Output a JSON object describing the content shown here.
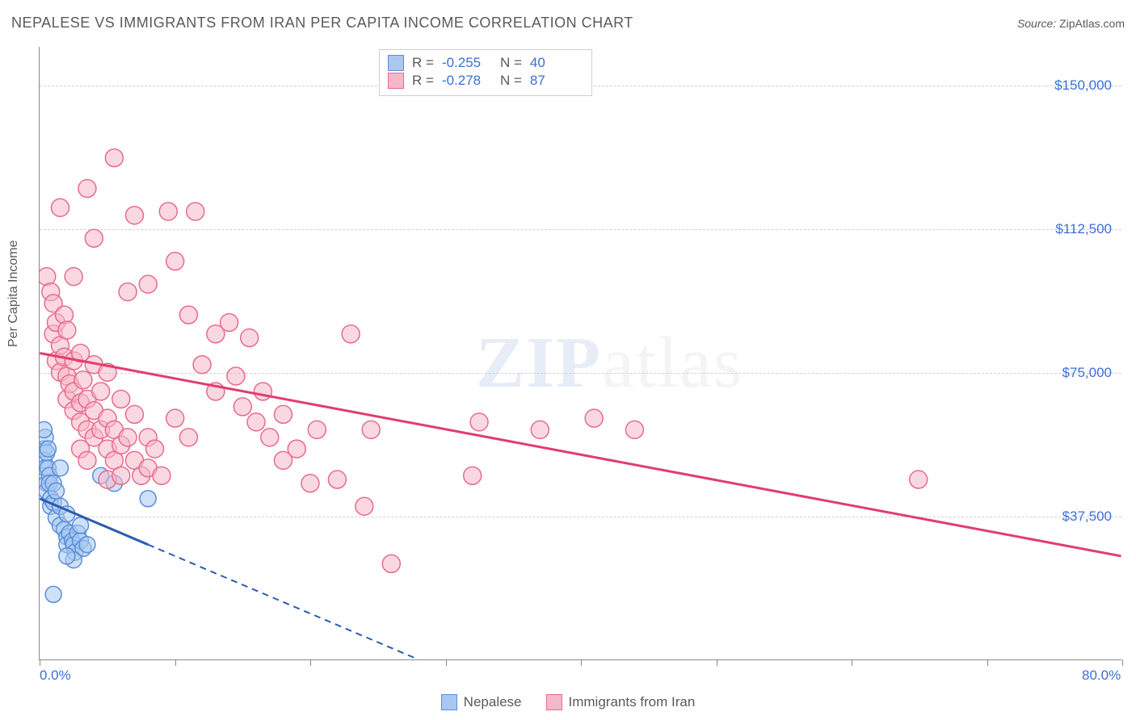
{
  "title": "NEPALESE VS IMMIGRANTS FROM IRAN PER CAPITA INCOME CORRELATION CHART",
  "source_label": "Source:",
  "source_value": "ZipAtlas.com",
  "y_axis_label": "Per Capita Income",
  "watermark_part1": "ZIP",
  "watermark_part2": "atlas",
  "chart": {
    "type": "scatter",
    "xlim": [
      0,
      80
    ],
    "ylim": [
      0,
      160000
    ],
    "x_ticks": [
      0,
      10,
      20,
      30,
      40,
      50,
      60,
      70,
      80
    ],
    "x_tick_labels": {
      "0": "0.0%",
      "80": "80.0%"
    },
    "y_ticks": [
      37500,
      75000,
      112500,
      150000
    ],
    "y_tick_labels": [
      "$37,500",
      "$75,000",
      "$112,500",
      "$150,000"
    ],
    "grid_color": "#d0d0d0",
    "axis_color": "#888888",
    "background": "#ffffff",
    "series": [
      {
        "name": "Nepalese",
        "fill": "#a8c8f0",
        "stroke": "#5b8dd8",
        "fill_opacity": 0.55,
        "marker_radius": 10,
        "trend_color": "#2a5db0",
        "trend_solid_end_x": 8,
        "trend": {
          "x0": 0,
          "y0": 42000,
          "x1": 28,
          "y1": 0
        },
        "points": [
          [
            0.3,
            55000
          ],
          [
            0.3,
            52000
          ],
          [
            0.4,
            58000
          ],
          [
            0.4,
            50000
          ],
          [
            0.5,
            54000
          ],
          [
            0.5,
            46000
          ],
          [
            0.5,
            44000
          ],
          [
            0.3,
            60000
          ],
          [
            0.6,
            55000
          ],
          [
            0.6,
            50000
          ],
          [
            0.7,
            48000
          ],
          [
            0.7,
            46000
          ],
          [
            0.8,
            42000
          ],
          [
            0.8,
            40000
          ],
          [
            1.0,
            46000
          ],
          [
            1.0,
            41000
          ],
          [
            1.2,
            44000
          ],
          [
            1.2,
            37000
          ],
          [
            1.5,
            50000
          ],
          [
            1.5,
            40000
          ],
          [
            1.5,
            35000
          ],
          [
            1.8,
            34000
          ],
          [
            2.0,
            38000
          ],
          [
            2.0,
            32000
          ],
          [
            2.0,
            30000
          ],
          [
            2.2,
            33000
          ],
          [
            2.4,
            31000
          ],
          [
            2.5,
            30000
          ],
          [
            2.6,
            28000
          ],
          [
            2.8,
            33000
          ],
          [
            3.0,
            31000
          ],
          [
            3.2,
            29000
          ],
          [
            3.5,
            30000
          ],
          [
            3.0,
            35000
          ],
          [
            4.5,
            48000
          ],
          [
            5.5,
            46000
          ],
          [
            8.0,
            42000
          ],
          [
            1.0,
            17000
          ],
          [
            2.5,
            26000
          ],
          [
            2.0,
            27000
          ]
        ]
      },
      {
        "name": "Immigrants from Iran",
        "fill": "#f5b8c8",
        "stroke": "#e86a8a",
        "fill_opacity": 0.55,
        "marker_radius": 11,
        "trend_color": "#e23d6d",
        "trend_solid_end_x": 80,
        "trend": {
          "x0": 0,
          "y0": 80000,
          "x1": 80,
          "y1": 27000
        },
        "points": [
          [
            0.5,
            100000
          ],
          [
            0.8,
            96000
          ],
          [
            1.0,
            93000
          ],
          [
            1.0,
            85000
          ],
          [
            1.2,
            88000
          ],
          [
            1.2,
            78000
          ],
          [
            1.5,
            82000
          ],
          [
            1.5,
            75000
          ],
          [
            1.8,
            90000
          ],
          [
            1.8,
            79000
          ],
          [
            2.0,
            86000
          ],
          [
            2.0,
            74000
          ],
          [
            2.0,
            68000
          ],
          [
            2.2,
            72000
          ],
          [
            2.5,
            78000
          ],
          [
            2.5,
            70000
          ],
          [
            2.5,
            65000
          ],
          [
            3.0,
            80000
          ],
          [
            3.0,
            67000
          ],
          [
            3.0,
            62000
          ],
          [
            3.0,
            55000
          ],
          [
            3.2,
            73000
          ],
          [
            3.5,
            68000
          ],
          [
            3.5,
            60000
          ],
          [
            3.5,
            52000
          ],
          [
            4.0,
            77000
          ],
          [
            4.0,
            65000
          ],
          [
            4.0,
            58000
          ],
          [
            4.5,
            70000
          ],
          [
            4.5,
            60000
          ],
          [
            5.0,
            75000
          ],
          [
            5.0,
            63000
          ],
          [
            5.0,
            55000
          ],
          [
            5.0,
            47000
          ],
          [
            5.5,
            60000
          ],
          [
            5.5,
            52000
          ],
          [
            6.0,
            68000
          ],
          [
            6.0,
            56000
          ],
          [
            6.0,
            48000
          ],
          [
            6.5,
            58000
          ],
          [
            7.0,
            64000
          ],
          [
            7.0,
            52000
          ],
          [
            7.5,
            48000
          ],
          [
            8.0,
            58000
          ],
          [
            8.0,
            50000
          ],
          [
            8.5,
            55000
          ],
          [
            9.0,
            48000
          ],
          [
            5.5,
            131000
          ],
          [
            3.5,
            123000
          ],
          [
            1.5,
            118000
          ],
          [
            7.0,
            116000
          ],
          [
            9.5,
            117000
          ],
          [
            4.0,
            110000
          ],
          [
            2.5,
            100000
          ],
          [
            10.0,
            104000
          ],
          [
            11.0,
            90000
          ],
          [
            11.5,
            117000
          ],
          [
            6.5,
            96000
          ],
          [
            8.0,
            98000
          ],
          [
            12.0,
            77000
          ],
          [
            13.0,
            85000
          ],
          [
            13.0,
            70000
          ],
          [
            14.0,
            88000
          ],
          [
            14.5,
            74000
          ],
          [
            15.0,
            66000
          ],
          [
            15.5,
            84000
          ],
          [
            16.0,
            62000
          ],
          [
            16.5,
            70000
          ],
          [
            17.0,
            58000
          ],
          [
            18.0,
            64000
          ],
          [
            18.0,
            52000
          ],
          [
            19.0,
            55000
          ],
          [
            20.0,
            46000
          ],
          [
            20.5,
            60000
          ],
          [
            22.0,
            47000
          ],
          [
            23.0,
            85000
          ],
          [
            24.0,
            40000
          ],
          [
            24.5,
            60000
          ],
          [
            32.0,
            48000
          ],
          [
            32.5,
            62000
          ],
          [
            37.0,
            60000
          ],
          [
            41.0,
            63000
          ],
          [
            44.0,
            60000
          ],
          [
            26.0,
            25000
          ],
          [
            65.0,
            47000
          ],
          [
            10.0,
            63000
          ],
          [
            11.0,
            58000
          ]
        ]
      }
    ]
  },
  "stats": [
    {
      "r_label": "R =",
      "r_value": "-0.255",
      "n_label": "N =",
      "n_value": "40",
      "swatch_fill": "#a8c8f0",
      "swatch_stroke": "#5b8dd8"
    },
    {
      "r_label": "R =",
      "r_value": "-0.278",
      "n_label": "N =",
      "n_value": "87",
      "swatch_fill": "#f5b8c8",
      "swatch_stroke": "#e86a8a"
    }
  ],
  "legend": [
    {
      "label": "Nepalese",
      "fill": "#a8c8f0",
      "stroke": "#5b8dd8"
    },
    {
      "label": "Immigrants from Iran",
      "fill": "#f5b8c8",
      "stroke": "#e86a8a"
    }
  ]
}
